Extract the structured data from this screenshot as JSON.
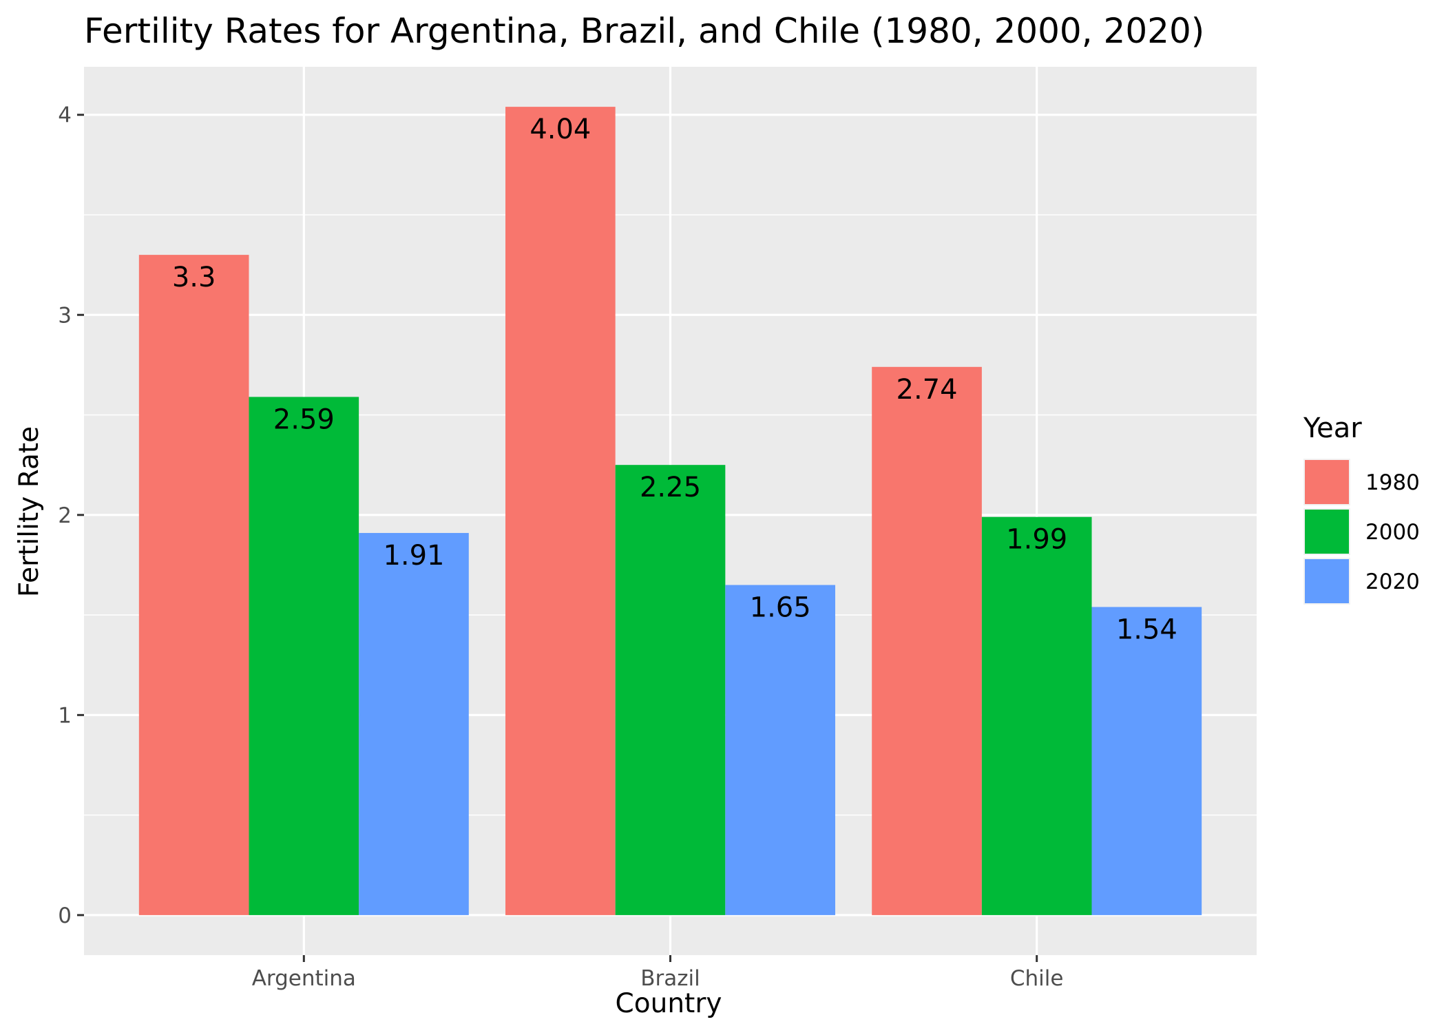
{
  "chart_data": {
    "type": "bar",
    "title": "Fertility Rates for Argentina, Brazil, and Chile (1980, 2000, 2020)",
    "xlabel": "Country",
    "ylabel": "Fertility Rate",
    "categories": [
      "Argentina",
      "Brazil",
      "Chile"
    ],
    "series": [
      {
        "name": "1980",
        "color": "#F8766D",
        "values": [
          3.3,
          4.04,
          2.74
        ],
        "labels": [
          "3.3",
          "4.04",
          "2.74"
        ]
      },
      {
        "name": "2000",
        "color": "#00BA38",
        "values": [
          2.59,
          2.25,
          1.99
        ],
        "labels": [
          "2.59",
          "2.25",
          "1.99"
        ]
      },
      {
        "name": "2020",
        "color": "#619CFF",
        "values": [
          1.91,
          1.65,
          1.54
        ],
        "labels": [
          "1.91",
          "1.65",
          "1.54"
        ]
      }
    ],
    "ylim": [
      -0.2,
      4.24
    ],
    "yticks": [
      0,
      1,
      2,
      3,
      4
    ],
    "ytick_labels": [
      "0",
      "1",
      "2",
      "3",
      "4"
    ],
    "legend": {
      "title": "Year",
      "placement": "right"
    },
    "grid": true,
    "panel_background": "#EBEBEB"
  }
}
